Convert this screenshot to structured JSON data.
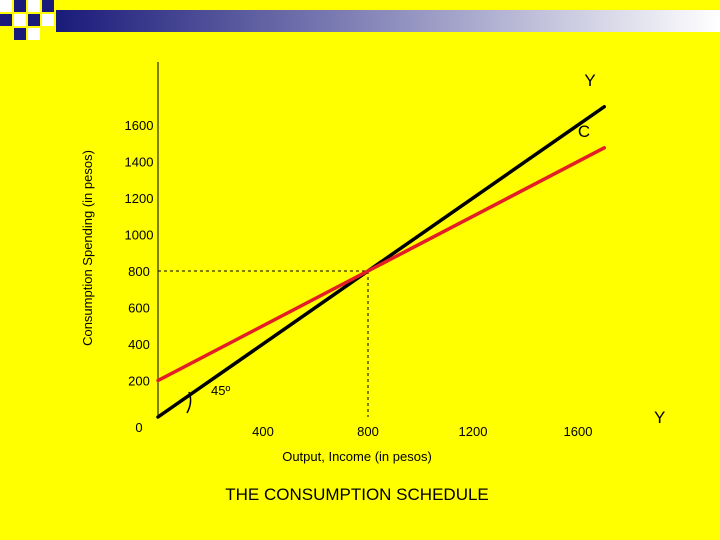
{
  "chart_data": {
    "type": "line",
    "title": "THE CONSUMPTION SCHEDULE",
    "xlabel": "Output, Income (in pesos)",
    "ylabel": "Consumption Spending (in pesos)",
    "x_ticks": [
      400,
      800,
      1200,
      1600
    ],
    "y_ticks": [
      0,
      200,
      400,
      600,
      800,
      1000,
      1200,
      1400,
      1600
    ],
    "xlim": [
      0,
      1900
    ],
    "ylim": [
      0,
      1700
    ],
    "series": [
      {
        "name": "Y",
        "color": "#000000",
        "x": [
          0,
          1700
        ],
        "y": [
          0,
          1700
        ]
      },
      {
        "name": "C",
        "color": "#e31e24",
        "x": [
          0,
          1700
        ],
        "y": [
          200,
          1475
        ]
      }
    ],
    "annotations": [
      {
        "text": "45º"
      },
      {
        "text": "Y"
      }
    ],
    "reference_point": {
      "x": 800,
      "y": 800
    },
    "grid": false
  },
  "decor": {
    "bar_start": "#ffffff",
    "bar_end": "#1a1a7a"
  }
}
